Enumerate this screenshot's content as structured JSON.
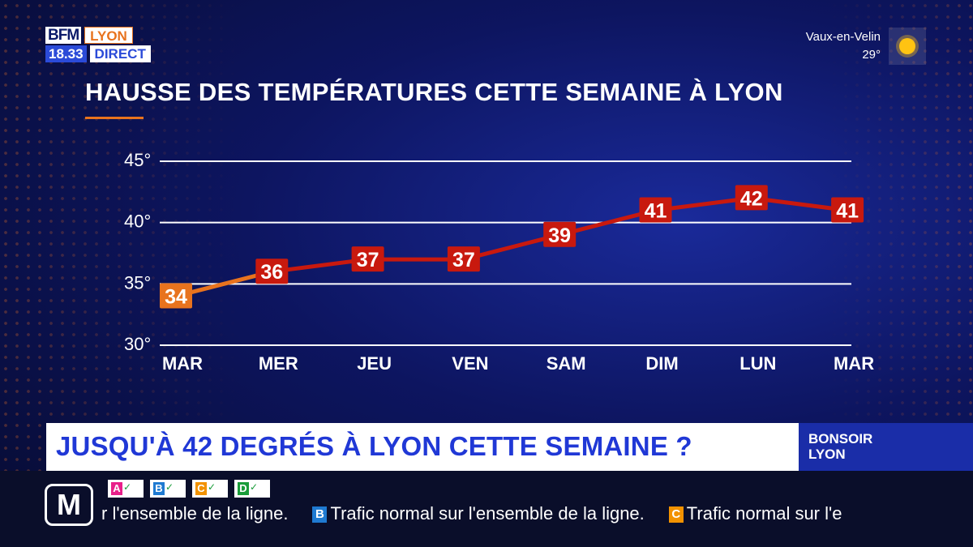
{
  "logo": {
    "brand": "BFM",
    "city": "LYON",
    "time": "18.33",
    "live": "DIRECT"
  },
  "weather": {
    "location": "Vaux-en-Velin",
    "temperature": "29°",
    "icon": "sun-icon"
  },
  "colors": {
    "accent": "#e8731e",
    "line_red": "#c8190e",
    "line_orange": "#e8731e",
    "headline_blue": "#2038d6"
  },
  "chart_data": {
    "type": "line",
    "title": "HAUSSE DES TEMPÉRATURES CETTE SEMAINE À LYON",
    "categories": [
      "MAR",
      "MER",
      "JEU",
      "VEN",
      "SAM",
      "DIM",
      "LUN",
      "MAR"
    ],
    "series": [
      {
        "values": [
          34,
          36,
          37,
          37,
          39,
          41,
          42,
          41
        ]
      }
    ],
    "ylim": [
      30,
      45
    ],
    "yticks": [
      "30°",
      "35°",
      "40°",
      "45°"
    ],
    "grid": true,
    "xlabel": "",
    "ylabel": ""
  },
  "headline": {
    "text": "JUSQU'À 42 DEGRÉS À LYON CETTE SEMAINE ?"
  },
  "show": {
    "name": "BONSOIR LYON"
  },
  "ticker": {
    "metro_logo": "M",
    "lines": [
      {
        "letter": "A",
        "color": "#e8208a"
      },
      {
        "letter": "B",
        "color": "#1f7ad1"
      },
      {
        "letter": "C",
        "color": "#f29200"
      },
      {
        "letter": "D",
        "color": "#1a9c3a"
      }
    ],
    "items": [
      {
        "line": "",
        "text": "r l'ensemble de la ligne."
      },
      {
        "line": "B",
        "line_color": "#1f7ad1",
        "text": "Trafic normal sur l'ensemble de la ligne."
      },
      {
        "line": "C",
        "line_color": "#f29200",
        "text": "Trafic normal sur l'e"
      }
    ]
  }
}
